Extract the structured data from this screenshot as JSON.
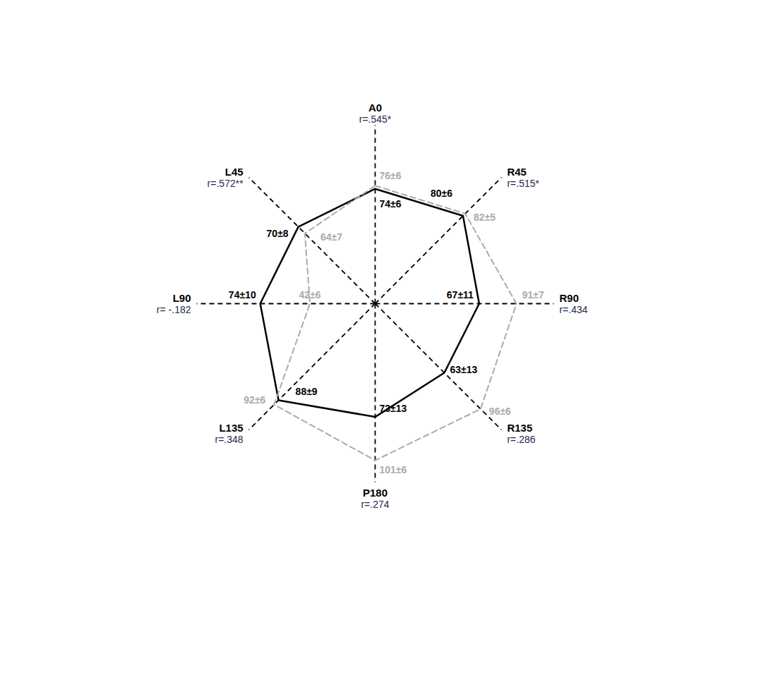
{
  "chart_data": {
    "type": "radar",
    "categories": [
      "A0",
      "R45",
      "R90",
      "R135",
      "P180",
      "L135",
      "L90",
      "L45"
    ],
    "annotations": [
      "r=.545*",
      "r=.515*",
      "r=.434",
      "r=.286",
      "r=.274",
      "r=.348",
      "r= -.182",
      "r=.572**"
    ],
    "series": [
      {
        "color": "#000000",
        "line_style": "solid",
        "values": [
          74,
          80,
          67,
          63,
          73,
          88,
          74,
          70
        ],
        "value_labels": [
          "74±6",
          "80±6",
          "67±11",
          "63±13",
          "73±13",
          "88±9",
          "74±10",
          "70±8"
        ]
      },
      {
        "color": "#aaaaaa",
        "line_style": "dashed",
        "values": [
          76,
          82,
          91,
          96,
          101,
          92,
          42,
          64
        ],
        "value_labels": [
          "76±6",
          "82±5",
          "91±7",
          "96±6",
          "101±6",
          "92±6",
          "42±6",
          "64±7"
        ]
      }
    ],
    "ylim": [
      0,
      115
    ],
    "grid": false,
    "tick_labels": false,
    "data_labels": true
  }
}
